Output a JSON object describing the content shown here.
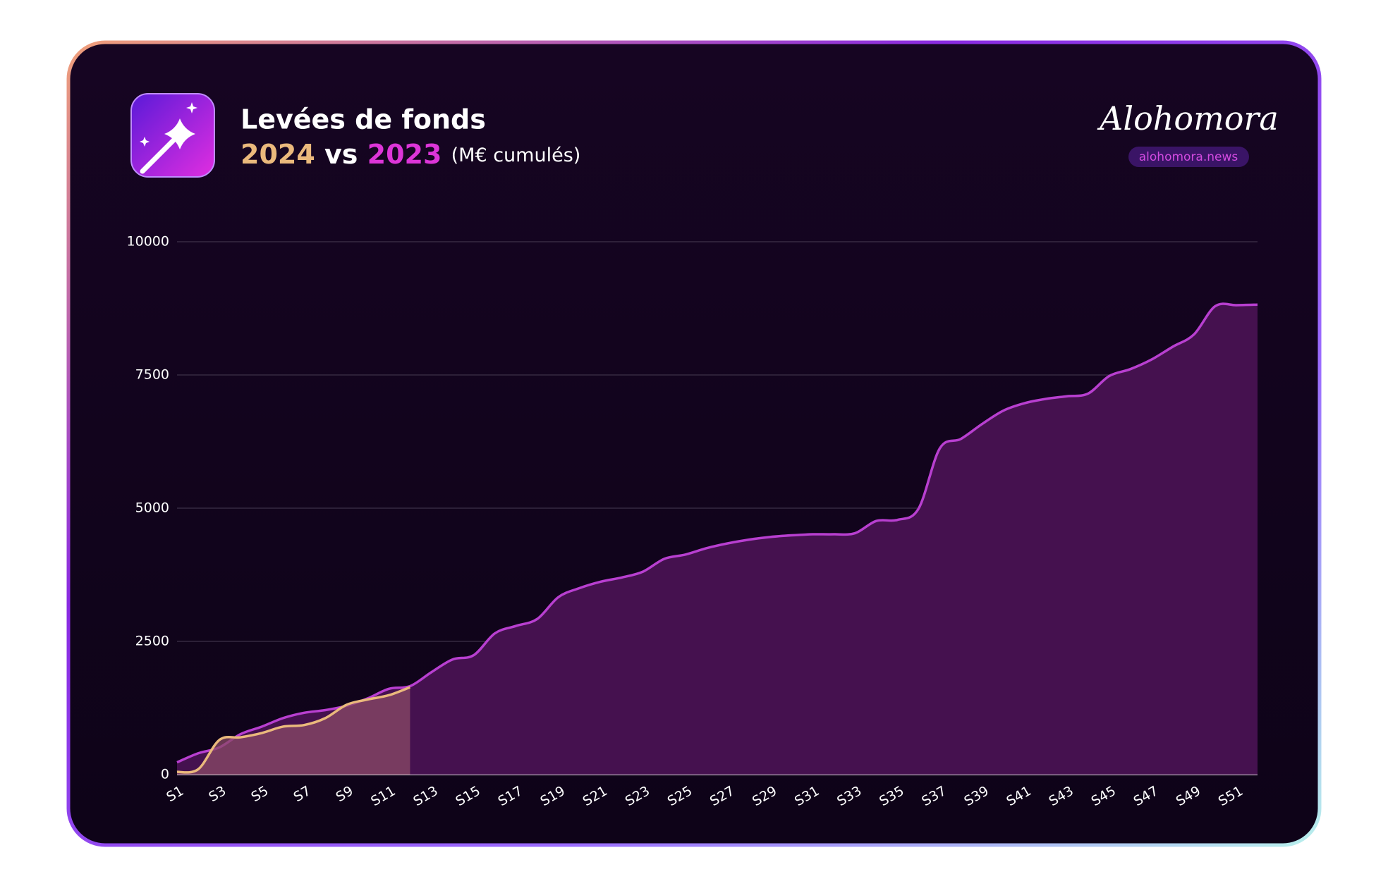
{
  "chart_data": {
    "type": "area",
    "title": "Levées de fonds",
    "subtitle": {
      "connector": "vs",
      "unit": "(M€ cumulés)"
    },
    "brand": {
      "name": "Alohomora",
      "url": "alohomora.news"
    },
    "categories": [
      "S1",
      null,
      "S3",
      null,
      "S5",
      null,
      "S7",
      null,
      "S9",
      null,
      "S11",
      null,
      "S13",
      null,
      "S15",
      null,
      "S17",
      null,
      "S19",
      null,
      "S21",
      null,
      "S23",
      null,
      "S25",
      null,
      "S27",
      null,
      "S29",
      null,
      "S31",
      null,
      "S33",
      null,
      "S35",
      null,
      "S37",
      null,
      "S39",
      null,
      "S41",
      null,
      "S43",
      null,
      "S45",
      null,
      "S47",
      null,
      "S49",
      null,
      "S51",
      null
    ],
    "series": [
      {
        "name": "2024",
        "color": "#eab97c",
        "fill": "#8a4a66",
        "values": [
          50,
          100,
          650,
          700,
          780,
          900,
          930,
          1060,
          1310,
          1410,
          1490,
          1640,
          null,
          null,
          null,
          null,
          null,
          null,
          null,
          null,
          null,
          null,
          null,
          null,
          null,
          null,
          null,
          null,
          null,
          null,
          null,
          null,
          null,
          null,
          null,
          null,
          null,
          null,
          null,
          null,
          null,
          null,
          null,
          null,
          null,
          null,
          null,
          null,
          null,
          null,
          null,
          null
        ]
      },
      {
        "name": "2023",
        "color": "#b83fd0",
        "fill": "#45114f",
        "values": [
          230,
          400,
          510,
          760,
          900,
          1060,
          1160,
          1210,
          1290,
          1430,
          1610,
          1660,
          1920,
          2160,
          2240,
          2650,
          2790,
          2920,
          3330,
          3500,
          3620,
          3700,
          3810,
          4050,
          4130,
          4250,
          4340,
          4410,
          4460,
          4490,
          4510,
          4510,
          4530,
          4760,
          4780,
          4990,
          6120,
          6300,
          6580,
          6830,
          6970,
          7050,
          7100,
          7150,
          7480,
          7610,
          7790,
          8030,
          8260,
          8790,
          8810,
          8820
        ]
      }
    ],
    "ylim": [
      0,
      10000
    ],
    "yticks": [
      0,
      2500,
      5000,
      7500,
      10000
    ],
    "grid": true
  }
}
